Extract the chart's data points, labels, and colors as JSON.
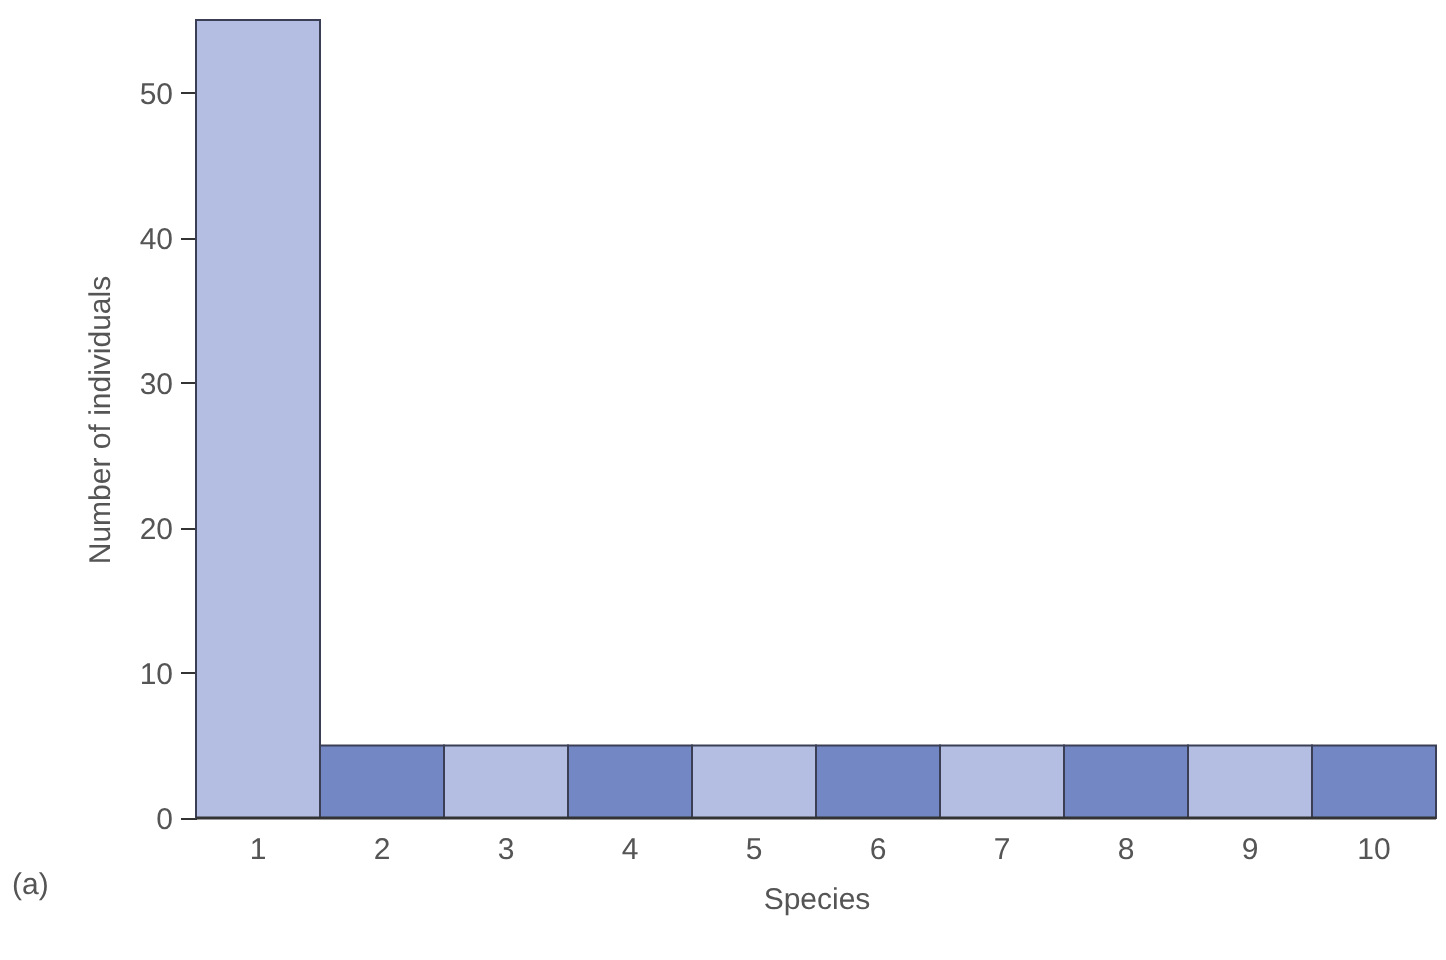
{
  "chart_data": {
    "type": "bar",
    "xlabel": "Species",
    "ylabel": "Number of individuals",
    "annotations": [
      "(a)"
    ],
    "categories": [
      "1",
      "2",
      "3",
      "4",
      "5",
      "6",
      "7",
      "8",
      "9",
      "10"
    ],
    "values": [
      55,
      5,
      5,
      5,
      5,
      5,
      5,
      5,
      5,
      5
    ],
    "colors": [
      "#b4bee2",
      "#7287c4",
      "#b4bee2",
      "#7287c4",
      "#b4bee2",
      "#7287c4",
      "#b4bee2",
      "#7287c4",
      "#b4bee2",
      "#7287c4"
    ],
    "ylim": [
      0,
      55
    ],
    "yticks": [
      0,
      10,
      20,
      30,
      40,
      50
    ],
    "grid": false
  }
}
